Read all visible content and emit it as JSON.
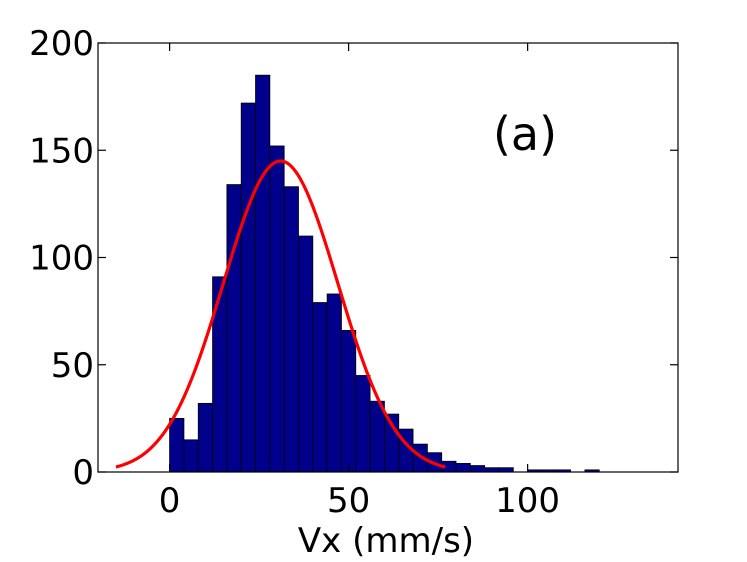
{
  "chart_data": {
    "type": "bar",
    "title": "",
    "xlabel": "Vx (mm/s)",
    "ylabel": "",
    "panel_label": "(a)",
    "xlim": [
      -20,
      142
    ],
    "ylim": [
      0,
      200
    ],
    "xticks": [
      0,
      50,
      100
    ],
    "yticks": [
      0,
      50,
      100,
      150,
      200
    ],
    "bin_width": 4,
    "bins": [
      {
        "x0": 0,
        "value": 25
      },
      {
        "x0": 4,
        "value": 15
      },
      {
        "x0": 8,
        "value": 32
      },
      {
        "x0": 12,
        "value": 91
      },
      {
        "x0": 16,
        "value": 134
      },
      {
        "x0": 20,
        "value": 172
      },
      {
        "x0": 24,
        "value": 185
      },
      {
        "x0": 28,
        "value": 152
      },
      {
        "x0": 32,
        "value": 133
      },
      {
        "x0": 36,
        "value": 110
      },
      {
        "x0": 40,
        "value": 79
      },
      {
        "x0": 44,
        "value": 83
      },
      {
        "x0": 48,
        "value": 66
      },
      {
        "x0": 52,
        "value": 45
      },
      {
        "x0": 56,
        "value": 33
      },
      {
        "x0": 60,
        "value": 27
      },
      {
        "x0": 64,
        "value": 20
      },
      {
        "x0": 68,
        "value": 13
      },
      {
        "x0": 72,
        "value": 9
      },
      {
        "x0": 76,
        "value": 5
      },
      {
        "x0": 80,
        "value": 4
      },
      {
        "x0": 84,
        "value": 3
      },
      {
        "x0": 88,
        "value": 2
      },
      {
        "x0": 92,
        "value": 2
      },
      {
        "x0": 96,
        "value": 0
      },
      {
        "x0": 100,
        "value": 1
      },
      {
        "x0": 104,
        "value": 1
      },
      {
        "x0": 108,
        "value": 1
      },
      {
        "x0": 112,
        "value": 0
      },
      {
        "x0": 116,
        "value": 1
      }
    ],
    "fit_curve": {
      "type": "gaussian",
      "amplitude": 145,
      "mean": 31,
      "sigma": 16,
      "x_range": [
        -15,
        77
      ],
      "color": "#ff0000"
    },
    "bar_color": "#00008b",
    "bar_edge_color": "#000000"
  }
}
